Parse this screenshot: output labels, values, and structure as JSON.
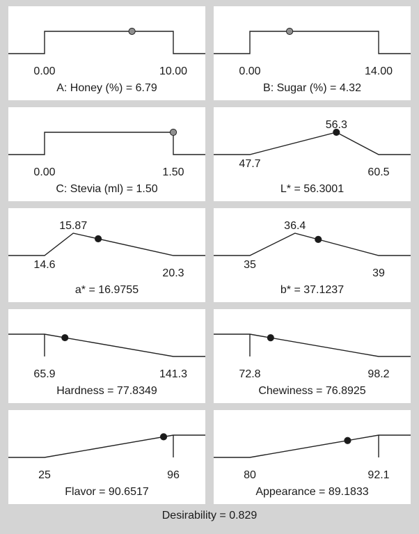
{
  "background_color": "#d4d4d4",
  "panel_color": "#ffffff",
  "line_color": "#222222",
  "marker_factor_color": "#8f8f8f",
  "marker_response_color": "#1a1a1a",
  "desirability_label": "Desirability = 0.829",
  "chart_data": [
    {
      "type": "line",
      "kind": "factor",
      "shape": "range",
      "title": "A: Honey (%) = 6.79",
      "low_label": "0.00",
      "high_label": "10.00",
      "low": 0,
      "high": 10,
      "value": 6.79
    },
    {
      "type": "line",
      "kind": "factor",
      "shape": "range",
      "title": "B: Sugar (%) = 4.32",
      "low_label": "0.00",
      "high_label": "14.00",
      "low": 0,
      "high": 14,
      "value": 4.32
    },
    {
      "type": "line",
      "kind": "factor",
      "shape": "range",
      "title": "C: Stevia (ml) = 1.50",
      "low_label": "0.00",
      "high_label": "1.50",
      "low": 0,
      "high": 1.5,
      "value": 1.5
    },
    {
      "type": "line",
      "kind": "response",
      "shape": "target",
      "title": "L* = 56.3001",
      "low_label": "47.7",
      "high_label": "60.5",
      "target_label": "56.3",
      "low": 47.7,
      "high": 60.5,
      "target": 56.3,
      "value": 56.3001
    },
    {
      "type": "line",
      "kind": "response",
      "shape": "target",
      "title": "a* = 16.9755",
      "low_label": "14.6",
      "high_label": "20.3",
      "target_label": "15.87",
      "low": 14.6,
      "high": 20.3,
      "target": 15.87,
      "value": 16.9755
    },
    {
      "type": "line",
      "kind": "response",
      "shape": "target",
      "title": "b* = 37.1237",
      "low_label": "35",
      "high_label": "39",
      "target_label": "36.4",
      "low": 35,
      "high": 39,
      "target": 36.4,
      "value": 37.1237
    },
    {
      "type": "line",
      "kind": "response",
      "shape": "minimize",
      "title": "Hardness = 77.8349",
      "low_label": "65.9",
      "high_label": "141.3",
      "low": 65.9,
      "high": 141.3,
      "value": 77.8349
    },
    {
      "type": "line",
      "kind": "response",
      "shape": "minimize",
      "title": "Chewiness = 76.8925",
      "low_label": "72.8",
      "high_label": "98.2",
      "low": 72.8,
      "high": 98.2,
      "value": 76.8925
    },
    {
      "type": "line",
      "kind": "response",
      "shape": "maximize",
      "title": "Flavor = 90.6517",
      "low_label": "25",
      "high_label": "96",
      "low": 25,
      "high": 96,
      "value": 90.6517
    },
    {
      "type": "line",
      "kind": "response",
      "shape": "maximize",
      "title": "Appearance = 89.1833",
      "low_label": "80",
      "high_label": "92.1",
      "low": 80,
      "high": 92.1,
      "value": 89.1833
    }
  ]
}
